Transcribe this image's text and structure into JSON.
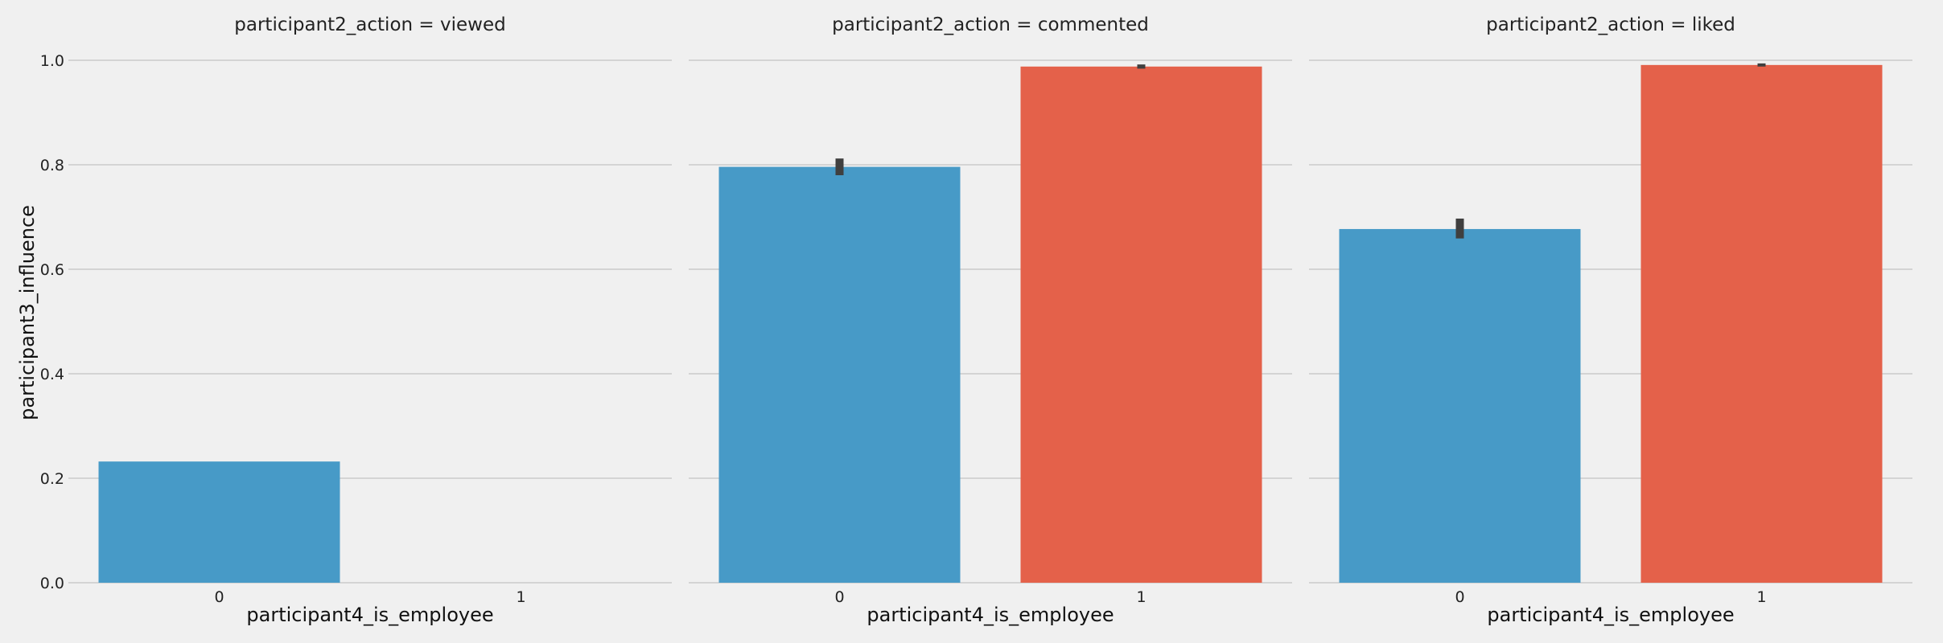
{
  "chart_data": {
    "type": "bar",
    "ylabel": "participant3_influence",
    "ylim": [
      0,
      1.0
    ],
    "yticks": [
      "0.0",
      "0.2",
      "0.4",
      "0.6",
      "0.8",
      "1.0"
    ],
    "grid": true,
    "colors": {
      "0": "#479ac7",
      "1": "#e4614a",
      "errorbar": "#3f3f3f"
    },
    "panels": [
      {
        "title": "participant2_action = viewed",
        "xlabel": "participant4_is_employee",
        "categories": [
          "0",
          "1"
        ],
        "values": [
          0.232,
          null
        ],
        "error": [
          null,
          null
        ]
      },
      {
        "title": "participant2_action = commented",
        "xlabel": "participant4_is_employee",
        "categories": [
          "0",
          "1"
        ],
        "values": [
          0.796,
          0.988
        ],
        "error": [
          [
            0.78,
            0.812
          ],
          [
            0.984,
            0.992
          ]
        ]
      },
      {
        "title": "participant2_action = liked",
        "xlabel": "participant4_is_employee",
        "categories": [
          "0",
          "1"
        ],
        "values": [
          0.677,
          0.991
        ],
        "error": [
          [
            0.659,
            0.697
          ],
          [
            0.988,
            0.994
          ]
        ]
      }
    ]
  }
}
